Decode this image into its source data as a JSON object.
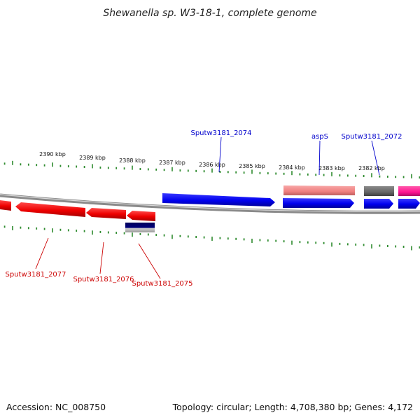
{
  "title": "Shewanella sp. W3-18-1, complete genome",
  "accession": "Accession: NC_008750",
  "topology": "Topology: circular; Length: 4,708,380 bp; Genes: 4,172",
  "colors": {
    "backbone": "#8a8a8a",
    "tick": "#2e8b2e",
    "forward_label": "#0000cc",
    "reverse_label": "#cc0000"
  },
  "ruler": {
    "labels": [
      "2390 kbp",
      "2389 kbp",
      "2388 kbp",
      "2387 kbp",
      "2386 kbp",
      "2385 kbp",
      "2384 kbp",
      "2383 kbp",
      "2382 kbp"
    ]
  },
  "genes": {
    "sputw3181_2074": {
      "label": "Sputw3181_2074",
      "strand": "forward",
      "color": "#0000ee"
    },
    "asps": {
      "label": "aspS",
      "strand": "forward",
      "color": "#f08080"
    },
    "sputw3181_2072": {
      "label": "Sputw3181_2072",
      "strand": "forward",
      "color": "#666666"
    },
    "sputw3181_2077": {
      "label": "Sputw3181_2077",
      "strand": "reverse",
      "color": "#ee0000"
    },
    "sputw3181_2076": {
      "label": "Sputw3181_2076",
      "strand": "reverse",
      "color": "#ee0000"
    },
    "sputw3181_2075": {
      "label": "Sputw3181_2075",
      "strand": "reverse",
      "color": "#ee0000"
    }
  }
}
